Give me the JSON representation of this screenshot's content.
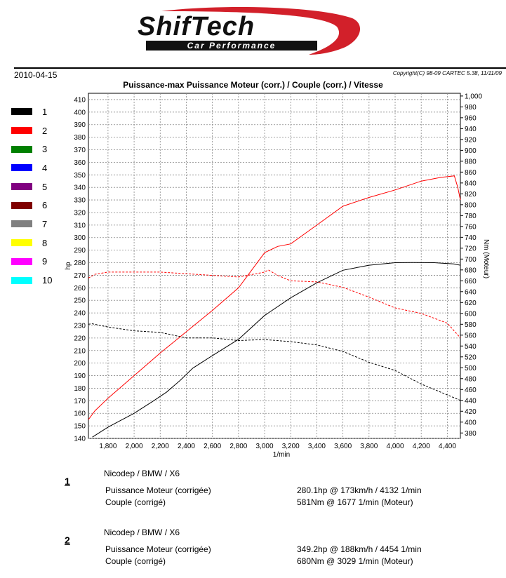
{
  "brand": {
    "logo_name": "ShifTech",
    "logo_tagline": "Car Performance",
    "accent": "#d2202a"
  },
  "header": {
    "date": "2010-04-15",
    "copyright": "Copyright(C) 98-09 CARTEC 5.38, 11/11/09"
  },
  "legend": [
    {
      "label": "1",
      "color": "#000000"
    },
    {
      "label": "2",
      "color": "#ff0000"
    },
    {
      "label": "3",
      "color": "#008000"
    },
    {
      "label": "4",
      "color": "#0000ff"
    },
    {
      "label": "5",
      "color": "#800080"
    },
    {
      "label": "6",
      "color": "#800000"
    },
    {
      "label": "7",
      "color": "#808080"
    },
    {
      "label": "8",
      "color": "#ffff00"
    },
    {
      "label": "9",
      "color": "#ff00ff"
    },
    {
      "label": "10",
      "color": "#00ffff"
    }
  ],
  "chart_data": {
    "type": "line",
    "title": "Puissance-max Puissance Moteur (corr.) / Couple (corr.) / Vitesse",
    "xlabel": "1/min",
    "ylabel": "hp",
    "y2label": "Nm (Moteur)",
    "xlim": [
      1650,
      4500
    ],
    "ylim": [
      140,
      415
    ],
    "y2lim": [
      370,
      1005
    ],
    "xticks": [
      1800,
      2000,
      2200,
      2400,
      2600,
      2800,
      3000,
      3200,
      3400,
      3600,
      3800,
      4000,
      4200,
      4400
    ],
    "xtick_labels": [
      "1,800",
      "2,000",
      "2,200",
      "2,400",
      "2,600",
      "2,800",
      "3,000",
      "3,200",
      "3,400",
      "3,600",
      "3,800",
      "4,000",
      "4,200",
      "4,400"
    ],
    "yticks": [
      140,
      150,
      160,
      170,
      180,
      190,
      200,
      210,
      220,
      230,
      240,
      250,
      260,
      270,
      280,
      290,
      300,
      310,
      320,
      330,
      340,
      350,
      360,
      370,
      380,
      390,
      400,
      410
    ],
    "y2ticks": [
      380,
      400,
      420,
      440,
      460,
      480,
      500,
      520,
      540,
      560,
      580,
      600,
      620,
      640,
      660,
      680,
      700,
      720,
      740,
      760,
      780,
      800,
      820,
      840,
      860,
      880,
      900,
      920,
      940,
      960,
      980,
      1000
    ],
    "y2tick_labels": [
      "380",
      "400",
      "420",
      "440",
      "460",
      "480",
      "500",
      "520",
      "540",
      "560",
      "580",
      "600",
      "620",
      "640",
      "660",
      "680",
      "700",
      "720",
      "740",
      "760",
      "780",
      "800",
      "820",
      "840",
      "860",
      "880",
      "900",
      "920",
      "940",
      "960",
      "980",
      "1,000"
    ],
    "grid": true,
    "legend_position": "left",
    "series": [
      {
        "name": "1",
        "color": "#000000",
        "axis": "left",
        "dash": false,
        "x": [
          1680,
          1800,
          2000,
          2150,
          2250,
          2350,
          2450,
          2600,
          2800,
          3000,
          3200,
          3400,
          3600,
          3800,
          4000,
          4132,
          4300,
          4450,
          4500
        ],
        "y": [
          141,
          149,
          160,
          170,
          177,
          186,
          196,
          206,
          219,
          238,
          252,
          264,
          274,
          278,
          280,
          280.1,
          280,
          279,
          278
        ]
      },
      {
        "name": "1",
        "color": "#000000",
        "axis": "right",
        "dash": true,
        "x": [
          1650,
          1677,
          1800,
          2000,
          2200,
          2400,
          2600,
          2800,
          3000,
          3200,
          3400,
          3600,
          3800,
          4000,
          4200,
          4400,
          4500
        ],
        "y": [
          580,
          581,
          575,
          568,
          565,
          555,
          555,
          550,
          552,
          548,
          542,
          530,
          510,
          495,
          470,
          450,
          440
        ]
      },
      {
        "name": "2",
        "color": "#ff0000",
        "axis": "left",
        "dash": false,
        "x": [
          1650,
          1700,
          1800,
          2000,
          2200,
          2400,
          2600,
          2800,
          3000,
          3100,
          3200,
          3400,
          3600,
          3800,
          4000,
          4200,
          4350,
          4454,
          4480,
          4500
        ],
        "y": [
          155,
          162,
          172,
          190,
          208,
          225,
          242,
          260,
          288,
          293,
          295,
          310,
          325,
          332,
          338,
          345,
          348,
          349.2,
          340,
          330
        ]
      },
      {
        "name": "2",
        "color": "#ff0000",
        "axis": "right",
        "dash": true,
        "x": [
          1650,
          1700,
          1800,
          2000,
          2200,
          2400,
          2600,
          2800,
          3000,
          3029,
          3100,
          3200,
          3400,
          3600,
          3800,
          4000,
          4200,
          4400,
          4500
        ],
        "y": [
          665,
          672,
          676,
          676,
          676,
          673,
          670,
          667,
          676,
          680,
          670,
          660,
          658,
          648,
          630,
          610,
          600,
          582,
          555
        ]
      }
    ]
  },
  "results": [
    {
      "num": "1",
      "title": "Nicodep / BMW / X6",
      "rows": [
        {
          "label": "Puissance Moteur (corrigée)",
          "value": "280.1hp @ 173km/h / 4132 1/min"
        },
        {
          "label": "Couple (corrigé)",
          "value": "581Nm @ 1677 1/min (Moteur)"
        }
      ]
    },
    {
      "num": "2",
      "title": "Nicodep / BMW / X6",
      "rows": [
        {
          "label": "Puissance Moteur (corrigée)",
          "value": "349.2hp @ 188km/h / 4454 1/min"
        },
        {
          "label": "Couple (corrigé)",
          "value": "680Nm @ 3029 1/min (Moteur)"
        }
      ]
    }
  ]
}
